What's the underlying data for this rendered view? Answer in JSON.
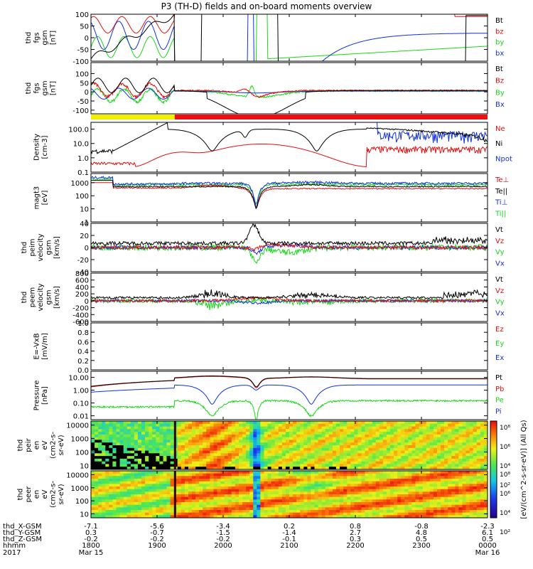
{
  "title": "P3 (TH-D) fields and on-board moments overview",
  "colors": {
    "black": "#000000",
    "red": "#e01010",
    "green": "#18d818",
    "blue": "#1030e0",
    "yellow": "#f0f000",
    "band_red": "#ee1010"
  },
  "chart_data": [
    {
      "type": "line",
      "ylabel": [
        "thd",
        "fgs",
        "gsm",
        "[nT]"
      ],
      "ylim": [
        -100,
        100
      ],
      "ytick_labels": [
        "100",
        "50",
        "0",
        "-50",
        "-100"
      ],
      "legend": [
        {
          "name": "Bt",
          "color": "black"
        },
        {
          "name": "bz",
          "color": "red"
        },
        {
          "name": "by",
          "color": "green"
        },
        {
          "name": "bx",
          "color": "blue"
        }
      ]
    },
    {
      "type": "line",
      "ylabel": [
        "thd",
        "fgs",
        "gsm",
        "[nT]"
      ],
      "ylim": [
        -120,
        160
      ],
      "ytick_labels": [
        "100",
        "50",
        "0",
        "-50",
        "-100"
      ],
      "legend": [
        {
          "name": "Bt",
          "color": "black"
        },
        {
          "name": "Bz",
          "color": "red"
        },
        {
          "name": "By",
          "color": "green"
        },
        {
          "name": "Bx",
          "color": "blue"
        }
      ]
    },
    {
      "type": "line",
      "ylabel": [
        "Density",
        "[cm-3]"
      ],
      "scale": "log",
      "ylim": [
        0.1,
        300
      ],
      "ytick_labels": [
        "100.0",
        "10.0",
        "1.0",
        "0.1"
      ],
      "legend": [
        {
          "name": "Ne",
          "color": "red"
        },
        {
          "name": "Ni",
          "color": "black"
        },
        {
          "name": "Npot",
          "color": "blue"
        }
      ]
    },
    {
      "type": "line",
      "ylabel": [
        "magt3",
        "[eV]"
      ],
      "scale": "log",
      "ylim": [
        1,
        5000
      ],
      "ytick_labels": [
        "1000",
        "100",
        "10",
        "1"
      ],
      "legend": [
        {
          "name": "Te⊥",
          "color": "red"
        },
        {
          "name": "Te||",
          "color": "black"
        },
        {
          "name": "Ti⊥",
          "color": "blue"
        },
        {
          "name": "Ti||",
          "color": "green"
        }
      ]
    },
    {
      "type": "line",
      "ylabel": [
        "thd",
        "peim",
        "velocity",
        "gsm",
        "[km/s]"
      ],
      "ylim": [
        -40,
        40
      ],
      "ytick_labels": [
        "40",
        "20",
        "0",
        "-20",
        "-40"
      ],
      "legend": [
        {
          "name": "Vt",
          "color": "black"
        },
        {
          "name": "Vz",
          "color": "red"
        },
        {
          "name": "Vy",
          "color": "green"
        },
        {
          "name": "Vx",
          "color": "blue"
        }
      ]
    },
    {
      "type": "line",
      "ylabel": [
        "thd",
        "peem",
        "velocity",
        "gsm",
        "[km/s]"
      ],
      "ylim": [
        -600,
        800
      ],
      "ytick_labels": [
        "800",
        "600",
        "400",
        "200",
        "0",
        "-200",
        "-400",
        "-600"
      ],
      "legend": [
        {
          "name": "Vt",
          "color": "black"
        },
        {
          "name": "Vz",
          "color": "red"
        },
        {
          "name": "Vy",
          "color": "green"
        },
        {
          "name": "Vx",
          "color": "blue"
        }
      ]
    },
    {
      "type": "line",
      "ylabel": [
        "E=-VxB",
        "[mV/m]"
      ],
      "ylim": [
        0,
        1
      ],
      "ytick_labels": [
        "1.0",
        "0.8",
        "0.6",
        "0.4",
        "0.2",
        "0.0"
      ],
      "legend": [
        {
          "name": "Ez",
          "color": "red"
        },
        {
          "name": "Ey",
          "color": "green"
        },
        {
          "name": "Ex",
          "color": "blue"
        }
      ]
    },
    {
      "type": "line",
      "ylabel": [
        "Pressure",
        "[nPa]"
      ],
      "scale": "log",
      "ylim": [
        0.005,
        30
      ],
      "ytick_labels": [
        "10.00",
        "1.00",
        "0.10",
        "0.01"
      ],
      "legend": [
        {
          "name": "Pt",
          "color": "black"
        },
        {
          "name": "Pb",
          "color": "red"
        },
        {
          "name": "Pe",
          "color": "green"
        },
        {
          "name": "Pi",
          "color": "blue"
        }
      ]
    },
    {
      "type": "heatmap",
      "ylabel": [
        "thd",
        "peir",
        "en",
        "eV",
        "(cm2-s-",
        "sr-eV)"
      ],
      "scale": "log",
      "ylim": [
        5,
        20000
      ],
      "ytick_labels": [
        "10000",
        "1000",
        "100",
        "10"
      ]
    },
    {
      "type": "heatmap",
      "ylabel": [
        "thd",
        "peer",
        "en",
        "eV",
        "(cm2-s-",
        "sr-eV)"
      ],
      "scale": "log",
      "ylim": [
        5,
        20000
      ],
      "ytick_labels": [
        "10000",
        "1000",
        "100",
        "10"
      ]
    }
  ],
  "colorbar": {
    "tick_labels": [
      "10⁸",
      "10⁶",
      "10⁴",
      "10²"
    ],
    "label": "[eV/(cm^2-s-sr-eV)] (All Qs)"
  },
  "xaxis": {
    "row_labels": [
      "thd_X-GSM",
      "thd_Y-GSM",
      "thd_Z-GSM",
      "hhmm",
      "2017"
    ],
    "columns": [
      {
        "x": "-7.1",
        "y": "0.3",
        "z": "-0.2",
        "hhmm": "1800",
        "date": "Mar 15"
      },
      {
        "x": "-5.6",
        "y": "-0.7",
        "z": "-0.2",
        "hhmm": "1900",
        "date": ""
      },
      {
        "x": "-3.4",
        "y": "-1.5",
        "z": "-0.2",
        "hhmm": "2000",
        "date": ""
      },
      {
        "x": "0.2",
        "y": "-1.4",
        "z": "-0.1",
        "hhmm": "2100",
        "date": ""
      },
      {
        "x": "0.8",
        "y": "2.7",
        "z": "0.3",
        "hhmm": "2200",
        "date": ""
      },
      {
        "x": "-0.8",
        "y": "4.8",
        "z": "0.5",
        "hhmm": "2300",
        "date": ""
      },
      {
        "x": "-2.3",
        "y": "6.1",
        "z": "0.5",
        "hhmm": "0000",
        "date": "Mar 16"
      }
    ]
  },
  "mode_bar": [
    {
      "from": "1800",
      "to": "1916",
      "color": "yellow"
    },
    {
      "from": "1916",
      "to": "0000",
      "color": "band_red"
    }
  ]
}
